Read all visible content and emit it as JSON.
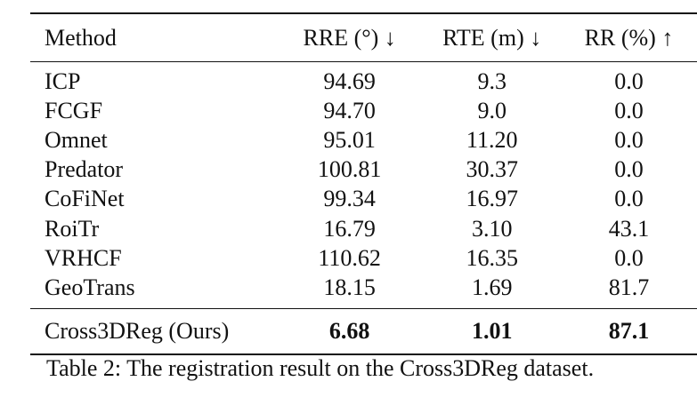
{
  "table": {
    "headers": [
      "Method",
      "RRE (°) ↓",
      "RTE (m) ↓",
      "RR (%) ↑"
    ],
    "rows": [
      [
        "ICP",
        "94.69",
        "9.3",
        "0.0"
      ],
      [
        "FCGF",
        "94.70",
        "9.0",
        "0.0"
      ],
      [
        "Omnet",
        "95.01",
        "11.20",
        "0.0"
      ],
      [
        "Predator",
        "100.81",
        "30.37",
        "0.0"
      ],
      [
        "CoFiNet",
        "99.34",
        "16.97",
        "0.0"
      ],
      [
        "RoiTr",
        "16.79",
        "3.10",
        "43.1"
      ],
      [
        "VRHCF",
        "110.62",
        "16.35",
        "0.0"
      ],
      [
        "GeoTrans",
        "18.15",
        "1.69",
        "81.7"
      ]
    ],
    "ours": [
      "Cross3DReg (Ours)",
      "6.68",
      "1.01",
      "87.1"
    ]
  },
  "caption": "Table 2: The registration result on the Cross3DReg dataset."
}
